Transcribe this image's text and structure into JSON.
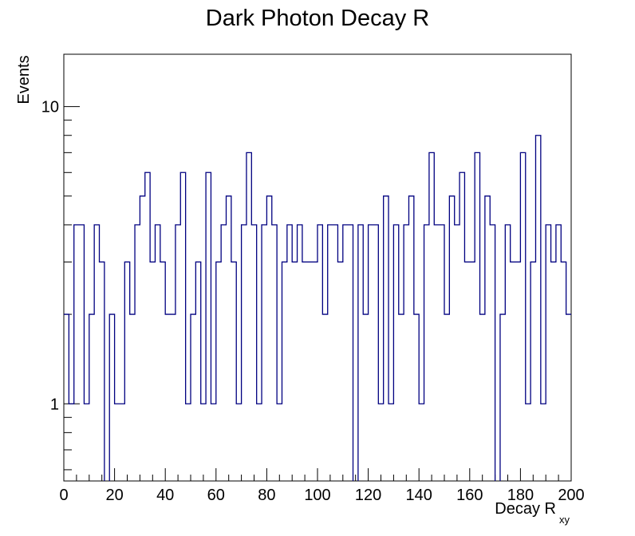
{
  "chart_data": {
    "type": "histogram",
    "title": "Dark Photon Decay R",
    "xlabel": "Decay R",
    "xlabel_subscript": "xy",
    "ylabel": "Events",
    "log_y": true,
    "xlim": [
      0,
      200
    ],
    "ylim": [
      0.55,
      15
    ],
    "bin_width": 2,
    "x_ticks": [
      0,
      20,
      40,
      60,
      80,
      100,
      120,
      140,
      160,
      180,
      200
    ],
    "y_major_ticks": [
      1,
      10
    ],
    "line_color": "#000080",
    "grid": false,
    "legend": "none",
    "x": [
      1,
      3,
      5,
      7,
      9,
      11,
      13,
      15,
      17,
      19,
      21,
      23,
      25,
      27,
      29,
      31,
      33,
      35,
      37,
      39,
      41,
      43,
      45,
      47,
      49,
      51,
      53,
      55,
      57,
      59,
      61,
      63,
      65,
      67,
      69,
      71,
      73,
      75,
      77,
      79,
      81,
      83,
      85,
      87,
      89,
      91,
      93,
      95,
      97,
      99,
      101,
      103,
      105,
      107,
      109,
      111,
      113,
      115,
      117,
      119,
      121,
      123,
      125,
      127,
      129,
      131,
      133,
      135,
      137,
      139,
      141,
      143,
      145,
      147,
      149,
      151,
      153,
      155,
      157,
      159,
      161,
      163,
      165,
      167,
      169,
      171,
      173,
      175,
      177,
      179,
      181,
      183,
      185,
      187,
      189,
      191,
      193,
      195,
      197,
      199
    ],
    "values": [
      2,
      1,
      4,
      4,
      1,
      2,
      4,
      3,
      0,
      2,
      1,
      1,
      3,
      2,
      4,
      5,
      6,
      3,
      4,
      3,
      2,
      2,
      4,
      6,
      1,
      2,
      3,
      1,
      6,
      1,
      3,
      4,
      5,
      3,
      1,
      4,
      7,
      4,
      1,
      4,
      5,
      4,
      1,
      3,
      4,
      3,
      4,
      3,
      3,
      3,
      4,
      2,
      4,
      4,
      3,
      4,
      4,
      0,
      4,
      2,
      4,
      4,
      1,
      5,
      1,
      4,
      2,
      4,
      5,
      2,
      1,
      4,
      7,
      4,
      4,
      2,
      5,
      4,
      6,
      3,
      3,
      7,
      2,
      5,
      4,
      0,
      2,
      4,
      3,
      3,
      7,
      1,
      3,
      8,
      1,
      4,
      3,
      4,
      3,
      2
    ]
  }
}
